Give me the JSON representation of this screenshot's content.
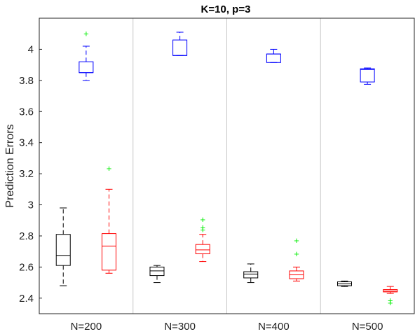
{
  "chart_data": {
    "type": "boxplot",
    "title": "K=10, p=3",
    "xlabel": "",
    "ylabel": "Prediction Errors",
    "categories": [
      "N=200",
      "N=300",
      "N=400",
      "N=500"
    ],
    "ylim": [
      2.3,
      4.2
    ],
    "yticks": [
      "2.4",
      "2.6",
      "2.8",
      "3",
      "3.2",
      "3.4",
      "3.6",
      "3.8",
      "4"
    ],
    "grid": false,
    "colors": {
      "black": "#000000",
      "blue": "#0000ff",
      "red": "#ff0000",
      "outlier": "#00ee00",
      "separator": "#c8c8c8"
    },
    "series": [
      {
        "color": "#000000",
        "boxes": [
          {
            "category": "N=200",
            "whislo": 2.48,
            "q1": 2.61,
            "med": 2.675,
            "q3": 2.81,
            "whishi": 2.98,
            "fliers": []
          },
          {
            "category": "N=300",
            "whislo": 2.5,
            "q1": 2.545,
            "med": 2.575,
            "q3": 2.6,
            "whishi": 2.61,
            "fliers": []
          },
          {
            "category": "N=400",
            "whislo": 2.5,
            "q1": 2.53,
            "med": 2.555,
            "q3": 2.57,
            "whishi": 2.62,
            "fliers": []
          },
          {
            "category": "N=500",
            "whislo": 2.475,
            "q1": 2.48,
            "med": 2.493,
            "q3": 2.505,
            "whishi": 2.51,
            "fliers": []
          }
        ]
      },
      {
        "color": "#0000ff",
        "boxes": [
          {
            "category": "N=200",
            "whislo": 3.8,
            "q1": 3.85,
            "med": 3.85,
            "q3": 3.92,
            "whishi": 4.02,
            "fliers": [
              4.1
            ]
          },
          {
            "category": "N=300",
            "whislo": 3.96,
            "q1": 3.96,
            "med": 3.96,
            "q3": 4.06,
            "whishi": 4.11,
            "fliers": []
          },
          {
            "category": "N=400",
            "whislo": 3.915,
            "q1": 3.915,
            "med": 3.97,
            "q3": 3.97,
            "whishi": 4.0,
            "fliers": []
          },
          {
            "category": "N=500",
            "whislo": 3.775,
            "q1": 3.79,
            "med": 3.87,
            "q3": 3.875,
            "whishi": 3.88,
            "fliers": []
          }
        ]
      },
      {
        "color": "#ff0000",
        "boxes": [
          {
            "category": "N=200",
            "whislo": 2.56,
            "q1": 2.58,
            "med": 2.735,
            "q3": 2.815,
            "whishi": 3.1,
            "fliers": [
              3.235
            ]
          },
          {
            "category": "N=300",
            "whislo": 2.635,
            "q1": 2.685,
            "med": 2.71,
            "q3": 2.745,
            "whishi": 2.81,
            "fliers": [
              2.905,
              2.855,
              2.84
            ]
          },
          {
            "category": "N=400",
            "whislo": 2.51,
            "q1": 2.525,
            "med": 2.55,
            "q3": 2.575,
            "whishi": 2.6,
            "fliers": [
              2.77,
              2.685
            ]
          },
          {
            "category": "N=500",
            "whislo": 2.43,
            "q1": 2.44,
            "med": 2.445,
            "q3": 2.455,
            "whishi": 2.475,
            "fliers": [
              2.385,
              2.37
            ]
          }
        ]
      }
    ]
  }
}
